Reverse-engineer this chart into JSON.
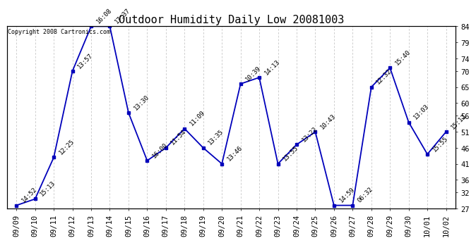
{
  "title": "Outdoor Humidity Daily Low 20081003",
  "copyright_text": "Copyright 2008 Cartronics.com",
  "x_labels": [
    "09/09",
    "09/10",
    "09/11",
    "09/12",
    "09/13",
    "09/14",
    "09/15",
    "09/16",
    "09/17",
    "09/18",
    "09/19",
    "09/20",
    "09/21",
    "09/22",
    "09/23",
    "09/24",
    "09/25",
    "09/26",
    "09/27",
    "09/28",
    "09/29",
    "09/30",
    "10/01",
    "10/02"
  ],
  "y_values": [
    28,
    30,
    43,
    70,
    84,
    84,
    57,
    42,
    46,
    52,
    46,
    41,
    66,
    68,
    41,
    47,
    51,
    28,
    28,
    65,
    71,
    54,
    44,
    51
  ],
  "point_labels": [
    "14:52",
    "15:13",
    "12:25",
    "13:57",
    "16:08",
    "17:37",
    "13:30",
    "16:00",
    "11:54",
    "11:09",
    "13:35",
    "13:46",
    "10:39",
    "14:13",
    "13:55",
    "13:22",
    "10:43",
    "14:59",
    "06:32",
    "12:32",
    "15:40",
    "13:03",
    "15:55",
    "15:12"
  ],
  "line_color": "#0000bb",
  "marker_color": "#0000bb",
  "bg_color": "#ffffff",
  "plot_bg_color": "#ffffff",
  "grid_color": "#aaaaaa",
  "ylim": [
    27,
    84
  ],
  "yticks_right": [
    27,
    32,
    36,
    41,
    46,
    51,
    56,
    60,
    65,
    70,
    74,
    79,
    84
  ],
  "title_fontsize": 11,
  "label_fontsize": 6.5,
  "copyright_fontsize": 6,
  "tick_fontsize": 7.5
}
